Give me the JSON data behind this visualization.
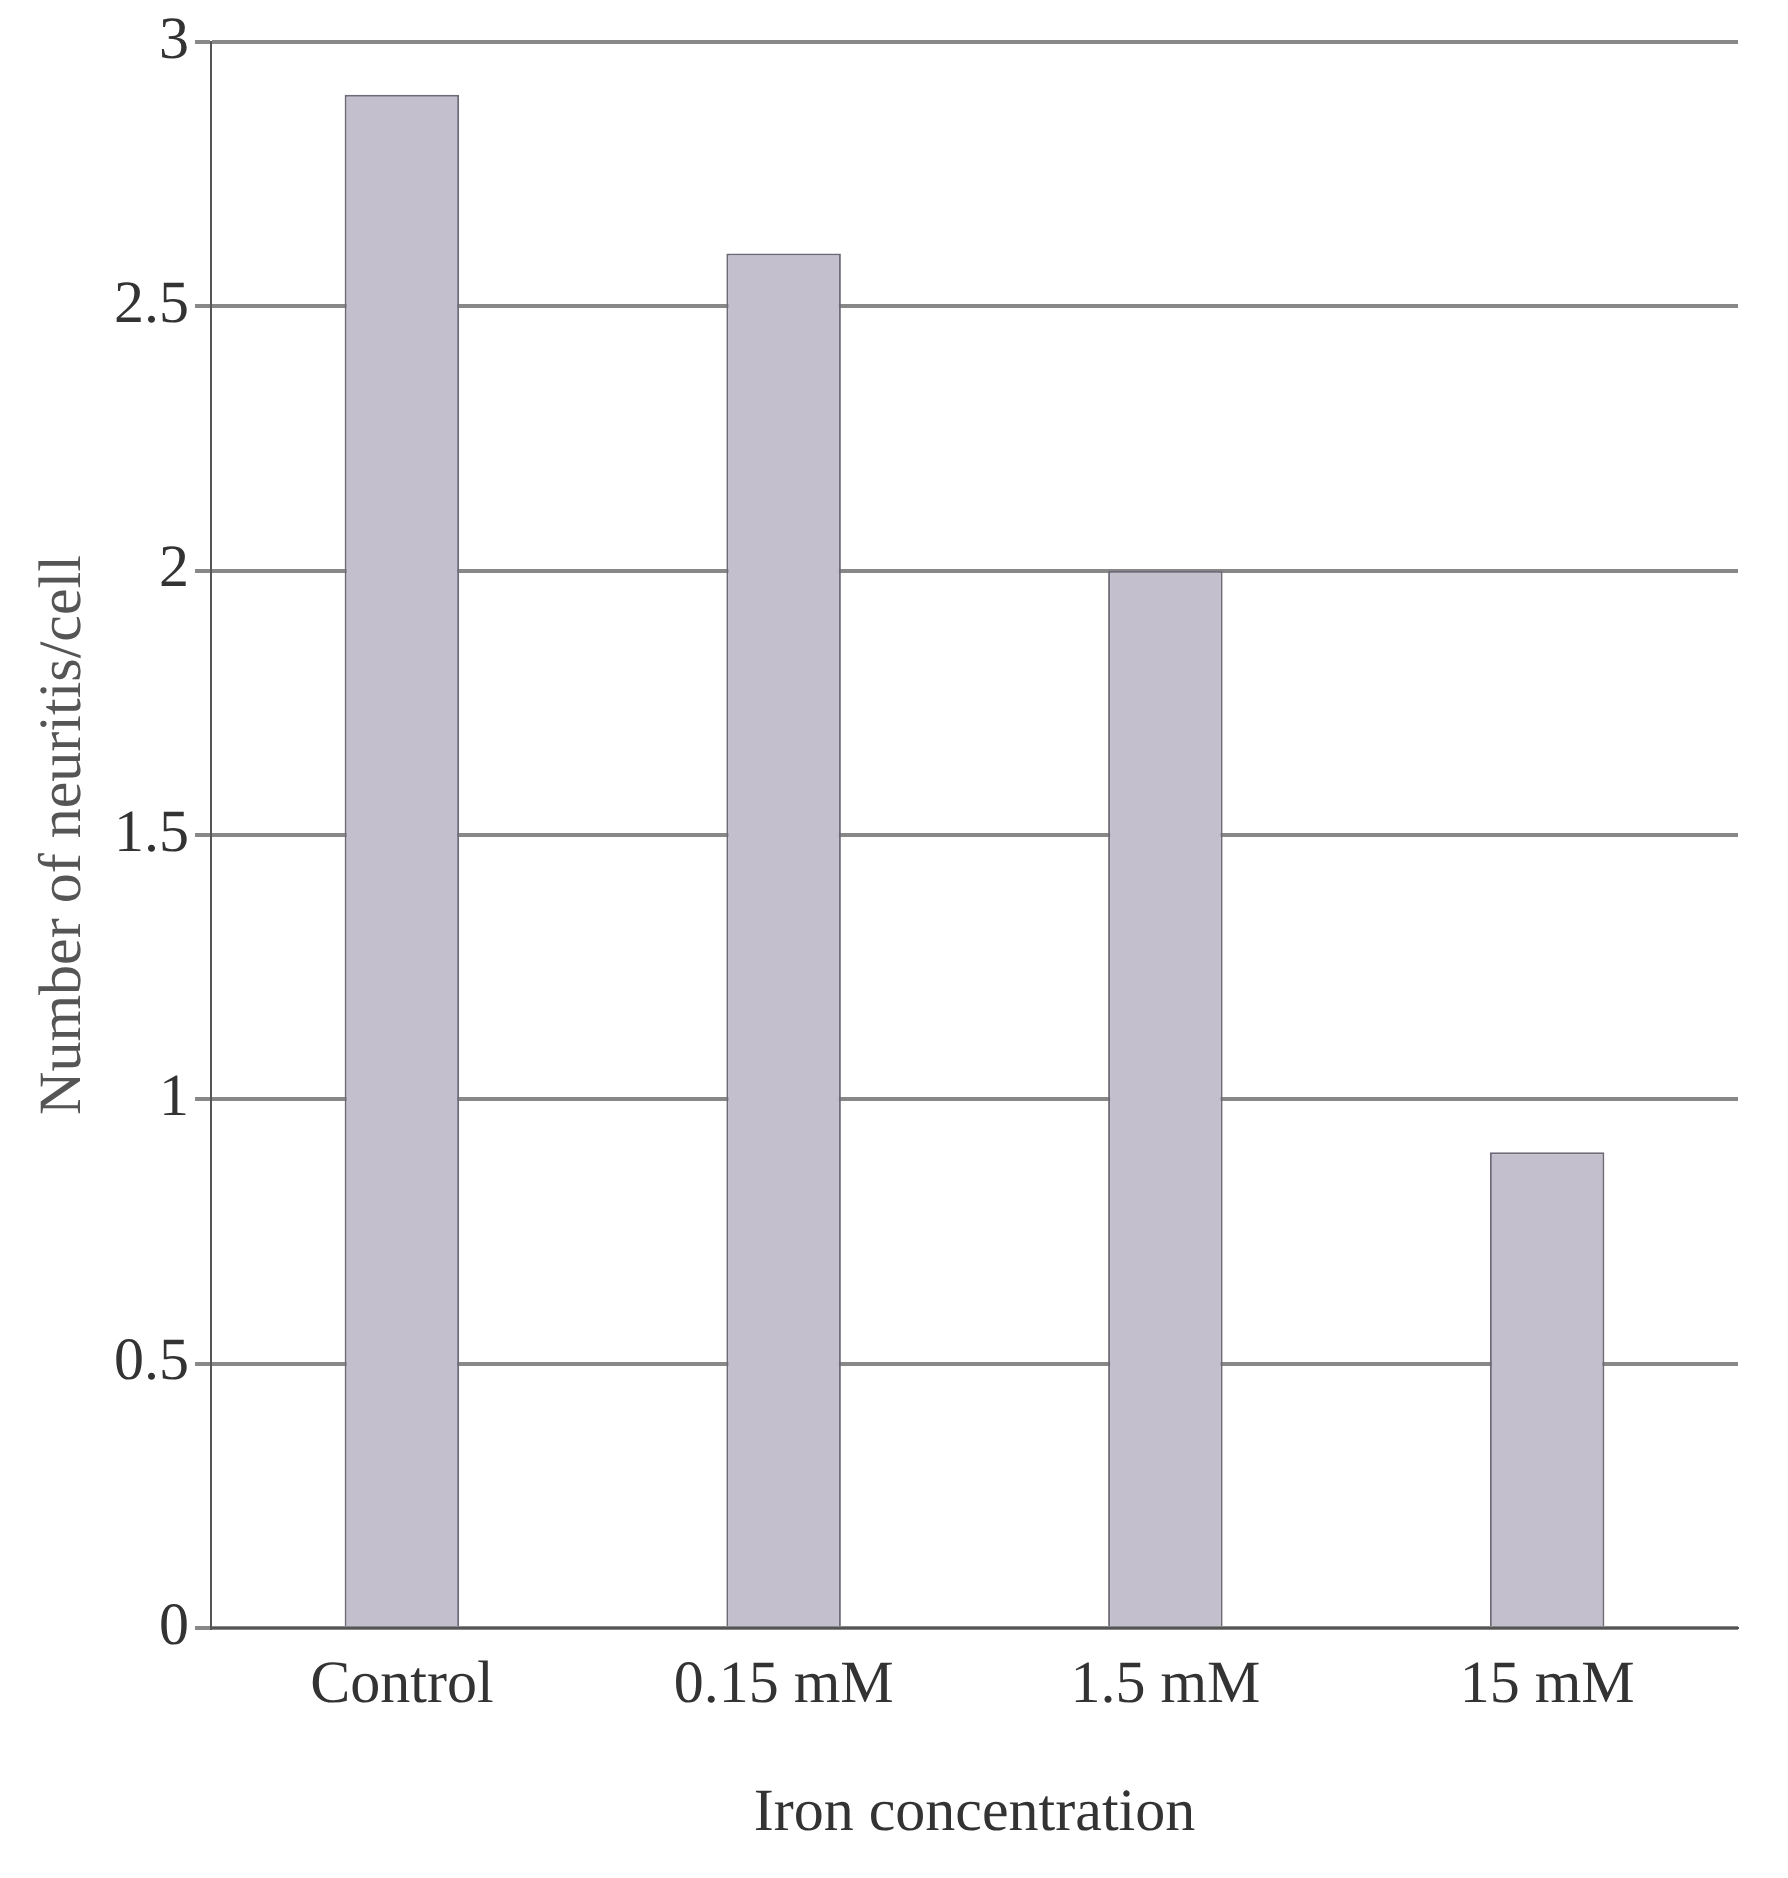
{
  "chart_data": {
    "type": "bar",
    "xlabel": "Iron concentration",
    "ylabel": "Number of neuritis/cell",
    "categories": [
      "Control",
      "0.15 mM",
      "1.5 mM",
      "15 mM"
    ],
    "values": [
      2.9,
      2.6,
      2.0,
      0.9
    ],
    "color": "#c3bfcc",
    "ylim": [
      0,
      3
    ],
    "yticks": [
      0,
      0.5,
      1,
      1.5,
      2,
      2.5,
      3
    ],
    "grid": "y",
    "legend": false
  }
}
